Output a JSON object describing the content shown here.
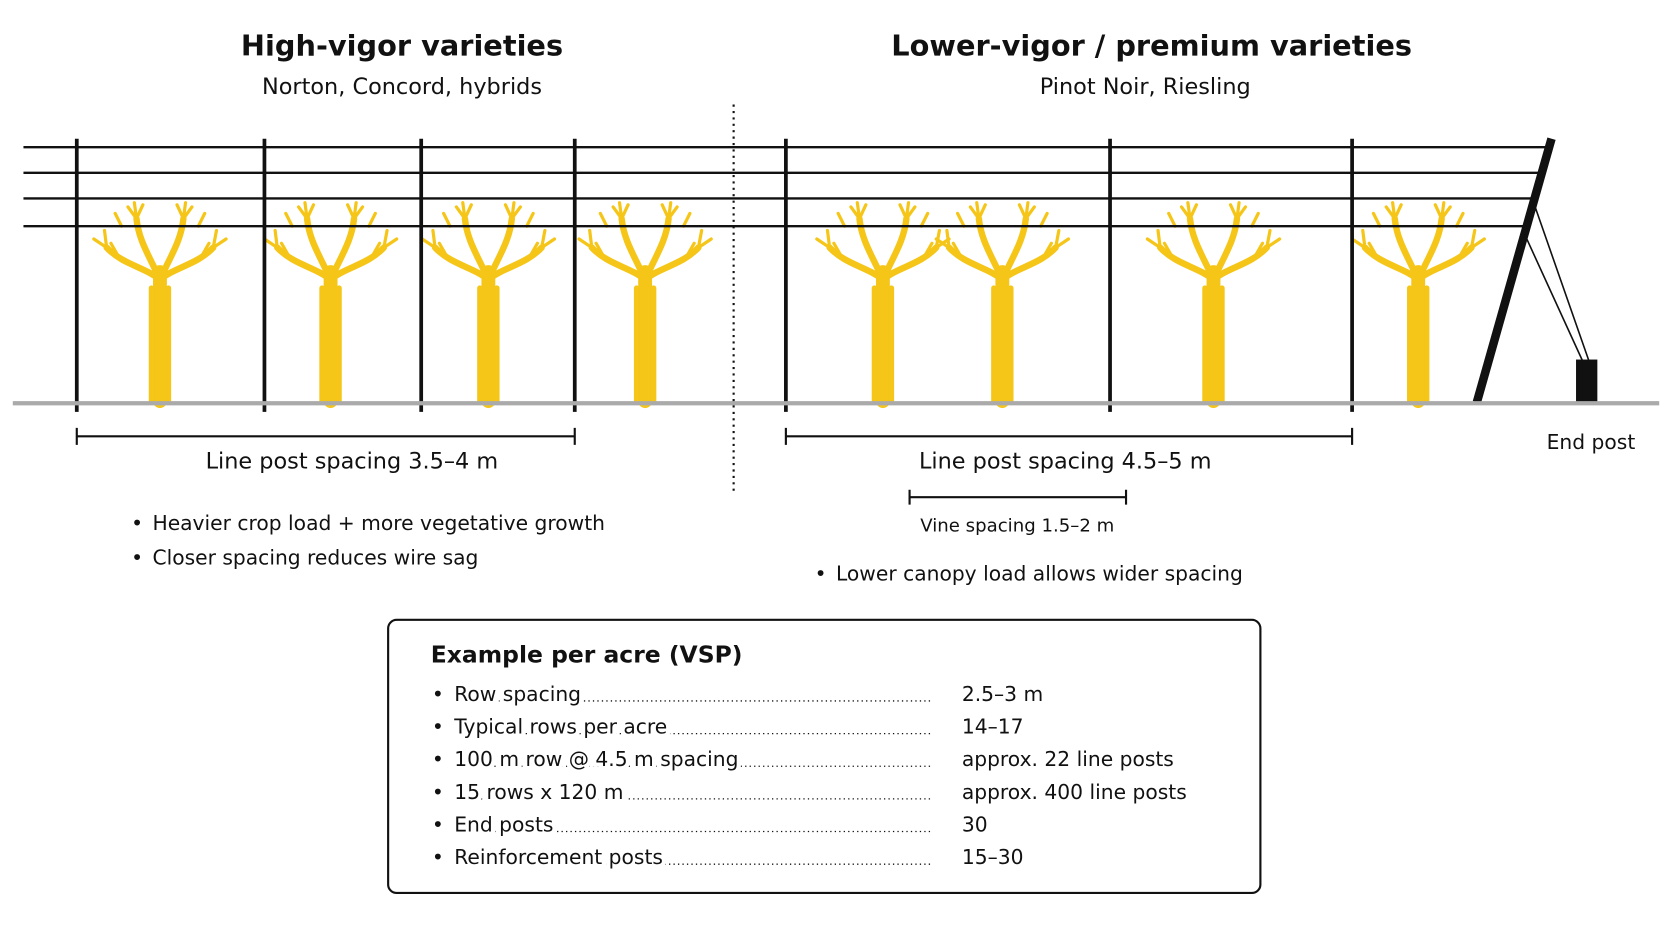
{
  "left": {
    "title": "High-vigor varieties",
    "subtitle": "Norton, Concord, hybrids",
    "spacing_label": "Line post spacing 3.5–4 m",
    "bullets": [
      "Heavier crop load + more vegetative growth",
      "Closer spacing reduces wire sag"
    ]
  },
  "right": {
    "title": "Lower-vigor / premium varieties",
    "subtitle": "Pinot Noir, Riesling",
    "spacing_label": "Line post spacing 4.5–5 m",
    "vine_spacing_label": "Vine spacing 1.5–2 m",
    "bullets": [
      "Lower canopy load allows wider spacing"
    ]
  },
  "end_post_label": "End post",
  "example": {
    "title": "Example per acre (VSP)",
    "rows": [
      {
        "label": "Row spacing",
        "value": "2.5–3 m"
      },
      {
        "label": "Typical rows per acre",
        "value": "14–17"
      },
      {
        "label": "100 m row @ 4.5 m spacing",
        "value": "approx. 22 line posts"
      },
      {
        "label": "15 rows x 120 m",
        "value": "approx. 400 line posts"
      },
      {
        "label": "End posts",
        "value": "30"
      },
      {
        "label": "Reinforcement posts",
        "value": "15–30"
      }
    ]
  }
}
